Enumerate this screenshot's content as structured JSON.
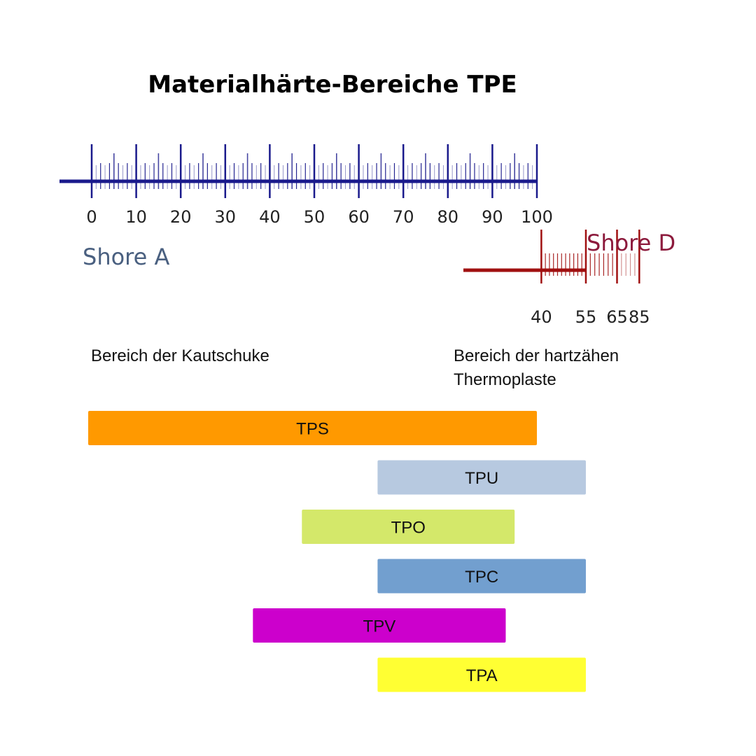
{
  "chart_data": {
    "type": "bar",
    "orientation": "horizontal-range",
    "title": "Materialhärte-Bereiche TPE",
    "scales": {
      "shore_a": {
        "name": "Shore A",
        "color": "#1a1a8c",
        "name_color": "#4a6080",
        "min": 0,
        "max": 100,
        "major_ticks": [
          0,
          10,
          20,
          30,
          40,
          50,
          60,
          70,
          80,
          90,
          100
        ]
      },
      "shore_d": {
        "name": "Shore D",
        "color": "#a01010",
        "name_color": "#8c1a3c",
        "major_ticks": [
          40,
          55,
          65,
          85
        ],
        "shore_a_equivalent": [
          101,
          111,
          118,
          123
        ]
      }
    },
    "regions": [
      {
        "label": "Bereich der Kautschuke"
      },
      {
        "label_lines": [
          "Bereich der hartzähen",
          "Thermoplaste"
        ]
      }
    ],
    "bars_unit": "Shore A (values above 100 continue onto the Shore D scale)",
    "bars": [
      {
        "name": "TPS",
        "start": 0,
        "end": 100,
        "color": "#ff9900"
      },
      {
        "name": "TPU",
        "start": 65,
        "end": 111,
        "color": "#b7c9e0"
      },
      {
        "name": "TPO",
        "start": 48,
        "end": 95,
        "color": "#d4e86a"
      },
      {
        "name": "TPC",
        "start": 65,
        "end": 111,
        "color": "#729fcf"
      },
      {
        "name": "TPV",
        "start": 37,
        "end": 93,
        "color": "#cc00cc"
      },
      {
        "name": "TPA",
        "start": 65,
        "end": 111,
        "color": "#ffff33"
      }
    ]
  }
}
